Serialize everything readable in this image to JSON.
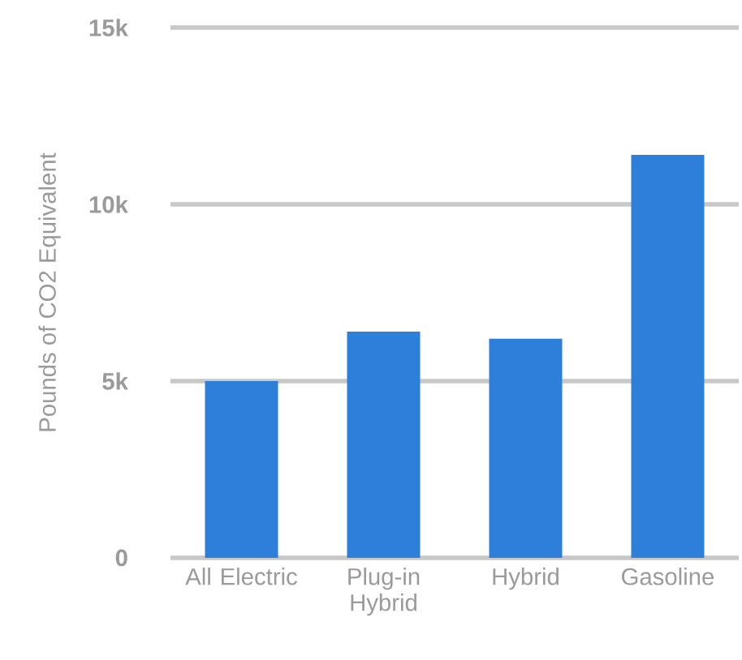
{
  "chart_data": {
    "type": "bar",
    "ylabel": "Pounds of CO2 Equivalent",
    "categories": [
      "All Electric",
      "Plug-in Hybrid",
      "Hybrid",
      "Gasoline"
    ],
    "values": [
      5000,
      6400,
      6200,
      11400
    ],
    "color": "#2e7fd9",
    "ylim": [
      0,
      15000
    ],
    "yticks": [
      {
        "value": 0,
        "label": "0"
      },
      {
        "value": 5000,
        "label": "5k"
      },
      {
        "value": 10000,
        "label": "10k"
      },
      {
        "value": 15000,
        "label": "15k"
      }
    ],
    "grid": "y"
  }
}
